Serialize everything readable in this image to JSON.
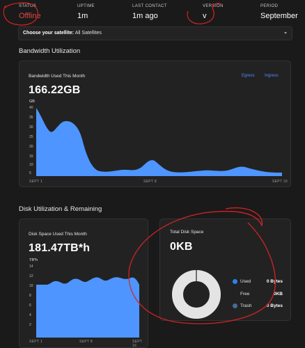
{
  "status_bar": {
    "status": {
      "label": "STATUS",
      "value": "Offline"
    },
    "uptime": {
      "label": "UPTIME",
      "value": "1m"
    },
    "last_contact": {
      "label": "LAST CONTACT",
      "value": "1m ago"
    },
    "version": {
      "label": "VERSION",
      "value": "v"
    },
    "period": {
      "label": "PERIOD",
      "value": "September"
    }
  },
  "satellite_selector": {
    "label": "Choose your satellite:",
    "value": "All Satellites"
  },
  "bandwidth": {
    "section_title": "Bandwidth Utilization",
    "panel_label": "Bandwidth Used This Month",
    "total": "166.22GB",
    "unit": "GB",
    "legend": [
      "Egress",
      "Ingress"
    ],
    "y_ticks": [
      "40",
      "35",
      "30",
      "25",
      "20",
      "15",
      "10",
      "5"
    ],
    "x_ticks": [
      "SEPT 1",
      "SEPT 8",
      "SEPT 16"
    ]
  },
  "disk": {
    "section_title": "Disk Utilization & Remaining",
    "panel_label": "Disk Space Used This Month",
    "total": "181.47TB*h",
    "unit": "TB*h",
    "y_ticks": [
      "14",
      "12",
      "10",
      "8",
      "6",
      "4",
      "2"
    ],
    "x_ticks": [
      "SEPT 1",
      "SEPT 8",
      "SEPT 16"
    ]
  },
  "total_disk": {
    "panel_label": "Total Disk Space",
    "total": "0KB",
    "legend": [
      {
        "label": "Used",
        "value": "0 Bytes",
        "color": "#2f7ff0"
      },
      {
        "label": "Free",
        "value": "0KB",
        "color": "#e0e0e0"
      },
      {
        "label": "Trash",
        "value": "0 Bytes",
        "color": "#4a6a94"
      }
    ]
  },
  "colors": {
    "accent": "#4e95ff",
    "offline": "#e54848",
    "annotation": "#d62222"
  }
}
